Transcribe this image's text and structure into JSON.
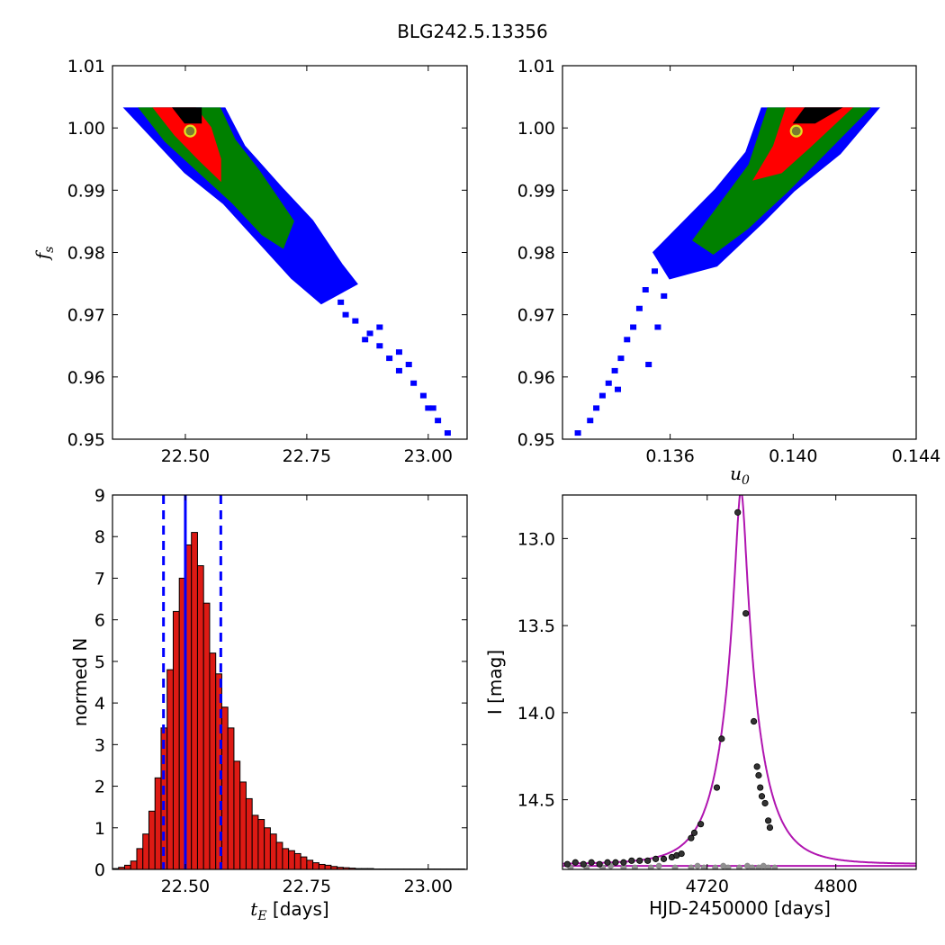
{
  "figure": {
    "title": "BLG242.5.13356"
  },
  "chart_data": [
    {
      "id": "fs-vs-tE",
      "type": "heatmap",
      "xlabel": "",
      "ylabel": "f",
      "ylabel_sub": "s",
      "xlim": [
        22.35,
        23.08
      ],
      "ylim": [
        0.95,
        1.01
      ],
      "xticks": [
        "22.50",
        "22.75",
        "23.00"
      ],
      "xtick_values": [
        22.5,
        22.75,
        23.0
      ],
      "yticks": [
        "0.95",
        "0.96",
        "0.97",
        "0.98",
        "0.99",
        "1.00",
        "1.01"
      ],
      "ytick_values": [
        0.95,
        0.96,
        0.97,
        0.98,
        0.99,
        1.0,
        1.01
      ],
      "levels": [
        {
          "color": "#0000ff",
          "poly": [
            [
              22.38,
              1.003
            ],
            [
              22.44,
              1.003
            ],
            [
              22.54,
              1.003
            ],
            [
              22.58,
              1.003
            ],
            [
              22.62,
              0.997
            ],
            [
              22.7,
              0.99
            ],
            [
              22.76,
              0.985
            ],
            [
              22.82,
              0.978
            ],
            [
              22.85,
              0.975
            ],
            [
              22.78,
              0.972
            ],
            [
              22.72,
              0.976
            ],
            [
              22.65,
              0.982
            ],
            [
              22.58,
              0.988
            ],
            [
              22.5,
              0.993
            ],
            [
              22.44,
              0.998
            ]
          ]
        },
        {
          "color": "#008000",
          "poly": [
            [
              22.41,
              1.003
            ],
            [
              22.5,
              1.003
            ],
            [
              22.57,
              1.003
            ],
            [
              22.6,
              0.998
            ],
            [
              22.65,
              0.993
            ],
            [
              22.72,
              0.985
            ],
            [
              22.7,
              0.981
            ],
            [
              22.66,
              0.983
            ],
            [
              22.6,
              0.988
            ],
            [
              22.53,
              0.993
            ],
            [
              22.46,
              0.998
            ]
          ]
        },
        {
          "color": "#ff0000",
          "poly": [
            [
              22.44,
              1.003
            ],
            [
              22.52,
              1.003
            ],
            [
              22.55,
              1.0
            ],
            [
              22.57,
              0.995
            ],
            [
              22.57,
              0.992
            ],
            [
              22.53,
              0.995
            ],
            [
              22.48,
              0.999
            ]
          ]
        },
        {
          "color": "#000000",
          "poly": [
            [
              22.48,
              1.003
            ],
            [
              22.53,
              1.003
            ],
            [
              22.53,
              1.001
            ],
            [
              22.5,
              1.001
            ]
          ]
        }
      ],
      "tail": [
        [
          22.82,
          0.972
        ],
        [
          22.85,
          0.969
        ],
        [
          22.88,
          0.967
        ],
        [
          22.9,
          0.965
        ],
        [
          22.92,
          0.963
        ],
        [
          22.94,
          0.961
        ],
        [
          22.97,
          0.959
        ],
        [
          22.99,
          0.957
        ],
        [
          23.0,
          0.955
        ],
        [
          23.02,
          0.953
        ],
        [
          23.04,
          0.951
        ],
        [
          22.9,
          0.968
        ],
        [
          22.94,
          0.964
        ],
        [
          22.96,
          0.962
        ],
        [
          23.01,
          0.955
        ],
        [
          22.87,
          0.966
        ],
        [
          22.8,
          0.974
        ],
        [
          22.83,
          0.97
        ]
      ],
      "marker": {
        "x": 22.51,
        "y": 0.9995
      }
    },
    {
      "id": "fs-vs-u0",
      "type": "heatmap",
      "xlabel": "u",
      "xlabel_sub": "0",
      "ylabel": "",
      "xlim": [
        0.1325,
        0.144
      ],
      "ylim": [
        0.95,
        1.01
      ],
      "xticks": [
        "0.136",
        "0.140",
        "0.144"
      ],
      "xtick_values": [
        0.136,
        0.14,
        0.144
      ],
      "yticks": [
        "0.95",
        "0.96",
        "0.97",
        "0.98",
        "0.99",
        "1.00",
        "1.01"
      ],
      "ytick_values": [
        0.95,
        0.96,
        0.97,
        0.98,
        0.99,
        1.0,
        1.01
      ],
      "levels": [
        {
          "color": "#0000ff",
          "poly": [
            [
              0.1355,
              0.98
            ],
            [
              0.1365,
              0.985
            ],
            [
              0.1375,
              0.99
            ],
            [
              0.1385,
              0.996
            ],
            [
              0.139,
              1.003
            ],
            [
              0.1427,
              1.003
            ],
            [
              0.1415,
              0.996
            ],
            [
              0.14,
              0.99
            ],
            [
              0.139,
              0.985
            ],
            [
              0.1375,
              0.978
            ],
            [
              0.136,
              0.976
            ]
          ]
        },
        {
          "color": "#008000",
          "poly": [
            [
              0.1368,
              0.982
            ],
            [
              0.1377,
              0.988
            ],
            [
              0.1386,
              0.994
            ],
            [
              0.1392,
              1.003
            ],
            [
              0.1424,
              1.003
            ],
            [
              0.141,
              0.996
            ],
            [
              0.1398,
              0.99
            ],
            [
              0.1385,
              0.984
            ],
            [
              0.1374,
              0.98
            ]
          ]
        },
        {
          "color": "#ff0000",
          "poly": [
            [
              0.1388,
              0.992
            ],
            [
              0.1394,
              0.997
            ],
            [
              0.1398,
              1.003
            ],
            [
              0.1418,
              1.003
            ],
            [
              0.1405,
              0.997
            ],
            [
              0.1396,
              0.993
            ]
          ]
        },
        {
          "color": "#000000",
          "poly": [
            [
              0.1401,
              1.001
            ],
            [
              0.1404,
              1.003
            ],
            [
              0.1414,
              1.003
            ],
            [
              0.1407,
              1.001
            ]
          ]
        }
      ],
      "tail": [
        [
          0.1355,
          0.977
        ],
        [
          0.1352,
          0.974
        ],
        [
          0.135,
          0.971
        ],
        [
          0.1348,
          0.968
        ],
        [
          0.1346,
          0.966
        ],
        [
          0.1344,
          0.963
        ],
        [
          0.1342,
          0.961
        ],
        [
          0.134,
          0.959
        ],
        [
          0.1338,
          0.957
        ],
        [
          0.1336,
          0.955
        ],
        [
          0.1334,
          0.953
        ],
        [
          0.133,
          0.951
        ],
        [
          0.1356,
          0.968
        ],
        [
          0.1353,
          0.962
        ],
        [
          0.1358,
          0.973
        ],
        [
          0.1343,
          0.958
        ]
      ],
      "marker": {
        "x": 0.1401,
        "y": 0.9995
      }
    },
    {
      "id": "tE-histogram",
      "type": "bar",
      "xlabel": "t",
      "xlabel_sub": "E",
      "xlabel_unit": " [days]",
      "ylabel": "normed N",
      "xlim": [
        22.35,
        23.08
      ],
      "ylim": [
        0,
        9
      ],
      "xticks": [
        "22.50",
        "22.75",
        "23.00"
      ],
      "xtick_values": [
        22.5,
        22.75,
        23.0
      ],
      "yticks": [
        "0",
        "1",
        "2",
        "3",
        "4",
        "5",
        "6",
        "7",
        "8",
        "9"
      ],
      "ytick_values": [
        0,
        1,
        2,
        3,
        4,
        5,
        6,
        7,
        8,
        9
      ],
      "bin_start": 22.35,
      "bin_width": 0.0125,
      "values": [
        0.02,
        0.05,
        0.1,
        0.2,
        0.5,
        0.85,
        1.4,
        2.2,
        3.4,
        4.8,
        6.2,
        7.0,
        7.8,
        8.1,
        7.3,
        6.4,
        5.2,
        4.7,
        3.9,
        3.4,
        2.6,
        2.1,
        1.7,
        1.3,
        1.2,
        1.0,
        0.85,
        0.65,
        0.5,
        0.45,
        0.38,
        0.3,
        0.22,
        0.16,
        0.12,
        0.1,
        0.07,
        0.05,
        0.04,
        0.03,
        0.02,
        0.02,
        0.02,
        0.01,
        0.01,
        0.01,
        0.01,
        0.01,
        0.01,
        0.01,
        0.01,
        0.01,
        0.01,
        0.01,
        0.01,
        0.01,
        0.01,
        0.01
      ],
      "median": 22.5,
      "bounds": [
        22.455,
        22.573
      ]
    },
    {
      "id": "light-curve",
      "type": "line",
      "xlabel": "HJD-2450000 [days]",
      "ylabel": "I [mag]",
      "xlim": [
        4630,
        4850
      ],
      "ylim": [
        14.9,
        12.75
      ],
      "xticks": [
        "4720",
        "4800"
      ],
      "xtick_values": [
        4720,
        4800
      ],
      "yticks": [
        "13.0",
        "13.5",
        "14.0",
        "14.5"
      ],
      "ytick_values": [
        13.0,
        13.5,
        14.0,
        14.5
      ],
      "model": {
        "t0": 4741,
        "tE": 22.5,
        "u0": 0.14,
        "base": 14.87,
        "fs": 1.0
      },
      "baseline2": 14.88,
      "points": [
        [
          4633,
          14.87
        ],
        [
          4638,
          14.86
        ],
        [
          4643,
          14.87
        ],
        [
          4648,
          14.86
        ],
        [
          4653,
          14.87
        ],
        [
          4658,
          14.86
        ],
        [
          4663,
          14.86
        ],
        [
          4668,
          14.86
        ],
        [
          4673,
          14.85
        ],
        [
          4678,
          14.85
        ],
        [
          4683,
          14.85
        ],
        [
          4688,
          14.84
        ],
        [
          4693,
          14.84
        ],
        [
          4698,
          14.83
        ],
        [
          4701,
          14.82
        ],
        [
          4704,
          14.81
        ],
        [
          4710,
          14.72
        ],
        [
          4712,
          14.69
        ],
        [
          4716,
          14.64
        ],
        [
          4726,
          14.43
        ],
        [
          4729,
          14.15
        ],
        [
          4739,
          12.85
        ],
        [
          4744,
          13.43
        ],
        [
          4749,
          14.05
        ],
        [
          4751,
          14.31
        ],
        [
          4752,
          14.36
        ],
        [
          4753,
          14.43
        ],
        [
          4754,
          14.48
        ],
        [
          4756,
          14.52
        ],
        [
          4758,
          14.62
        ],
        [
          4759,
          14.66
        ]
      ],
      "points2": [
        [
          4635,
          14.89
        ],
        [
          4645,
          14.89
        ],
        [
          4655,
          14.89
        ],
        [
          4660,
          14.88
        ],
        [
          4668,
          14.89
        ],
        [
          4675,
          14.89
        ],
        [
          4685,
          14.89
        ],
        [
          4690,
          14.88
        ],
        [
          4700,
          14.89
        ],
        [
          4710,
          14.89
        ],
        [
          4714,
          14.88
        ],
        [
          4718,
          14.89
        ],
        [
          4725,
          14.89
        ],
        [
          4730,
          14.88
        ],
        [
          4733,
          14.89
        ],
        [
          4740,
          14.89
        ],
        [
          4745,
          14.88
        ],
        [
          4748,
          14.89
        ],
        [
          4752,
          14.89
        ],
        [
          4755,
          14.88
        ],
        [
          4758,
          14.89
        ],
        [
          4762,
          14.89
        ]
      ]
    }
  ]
}
